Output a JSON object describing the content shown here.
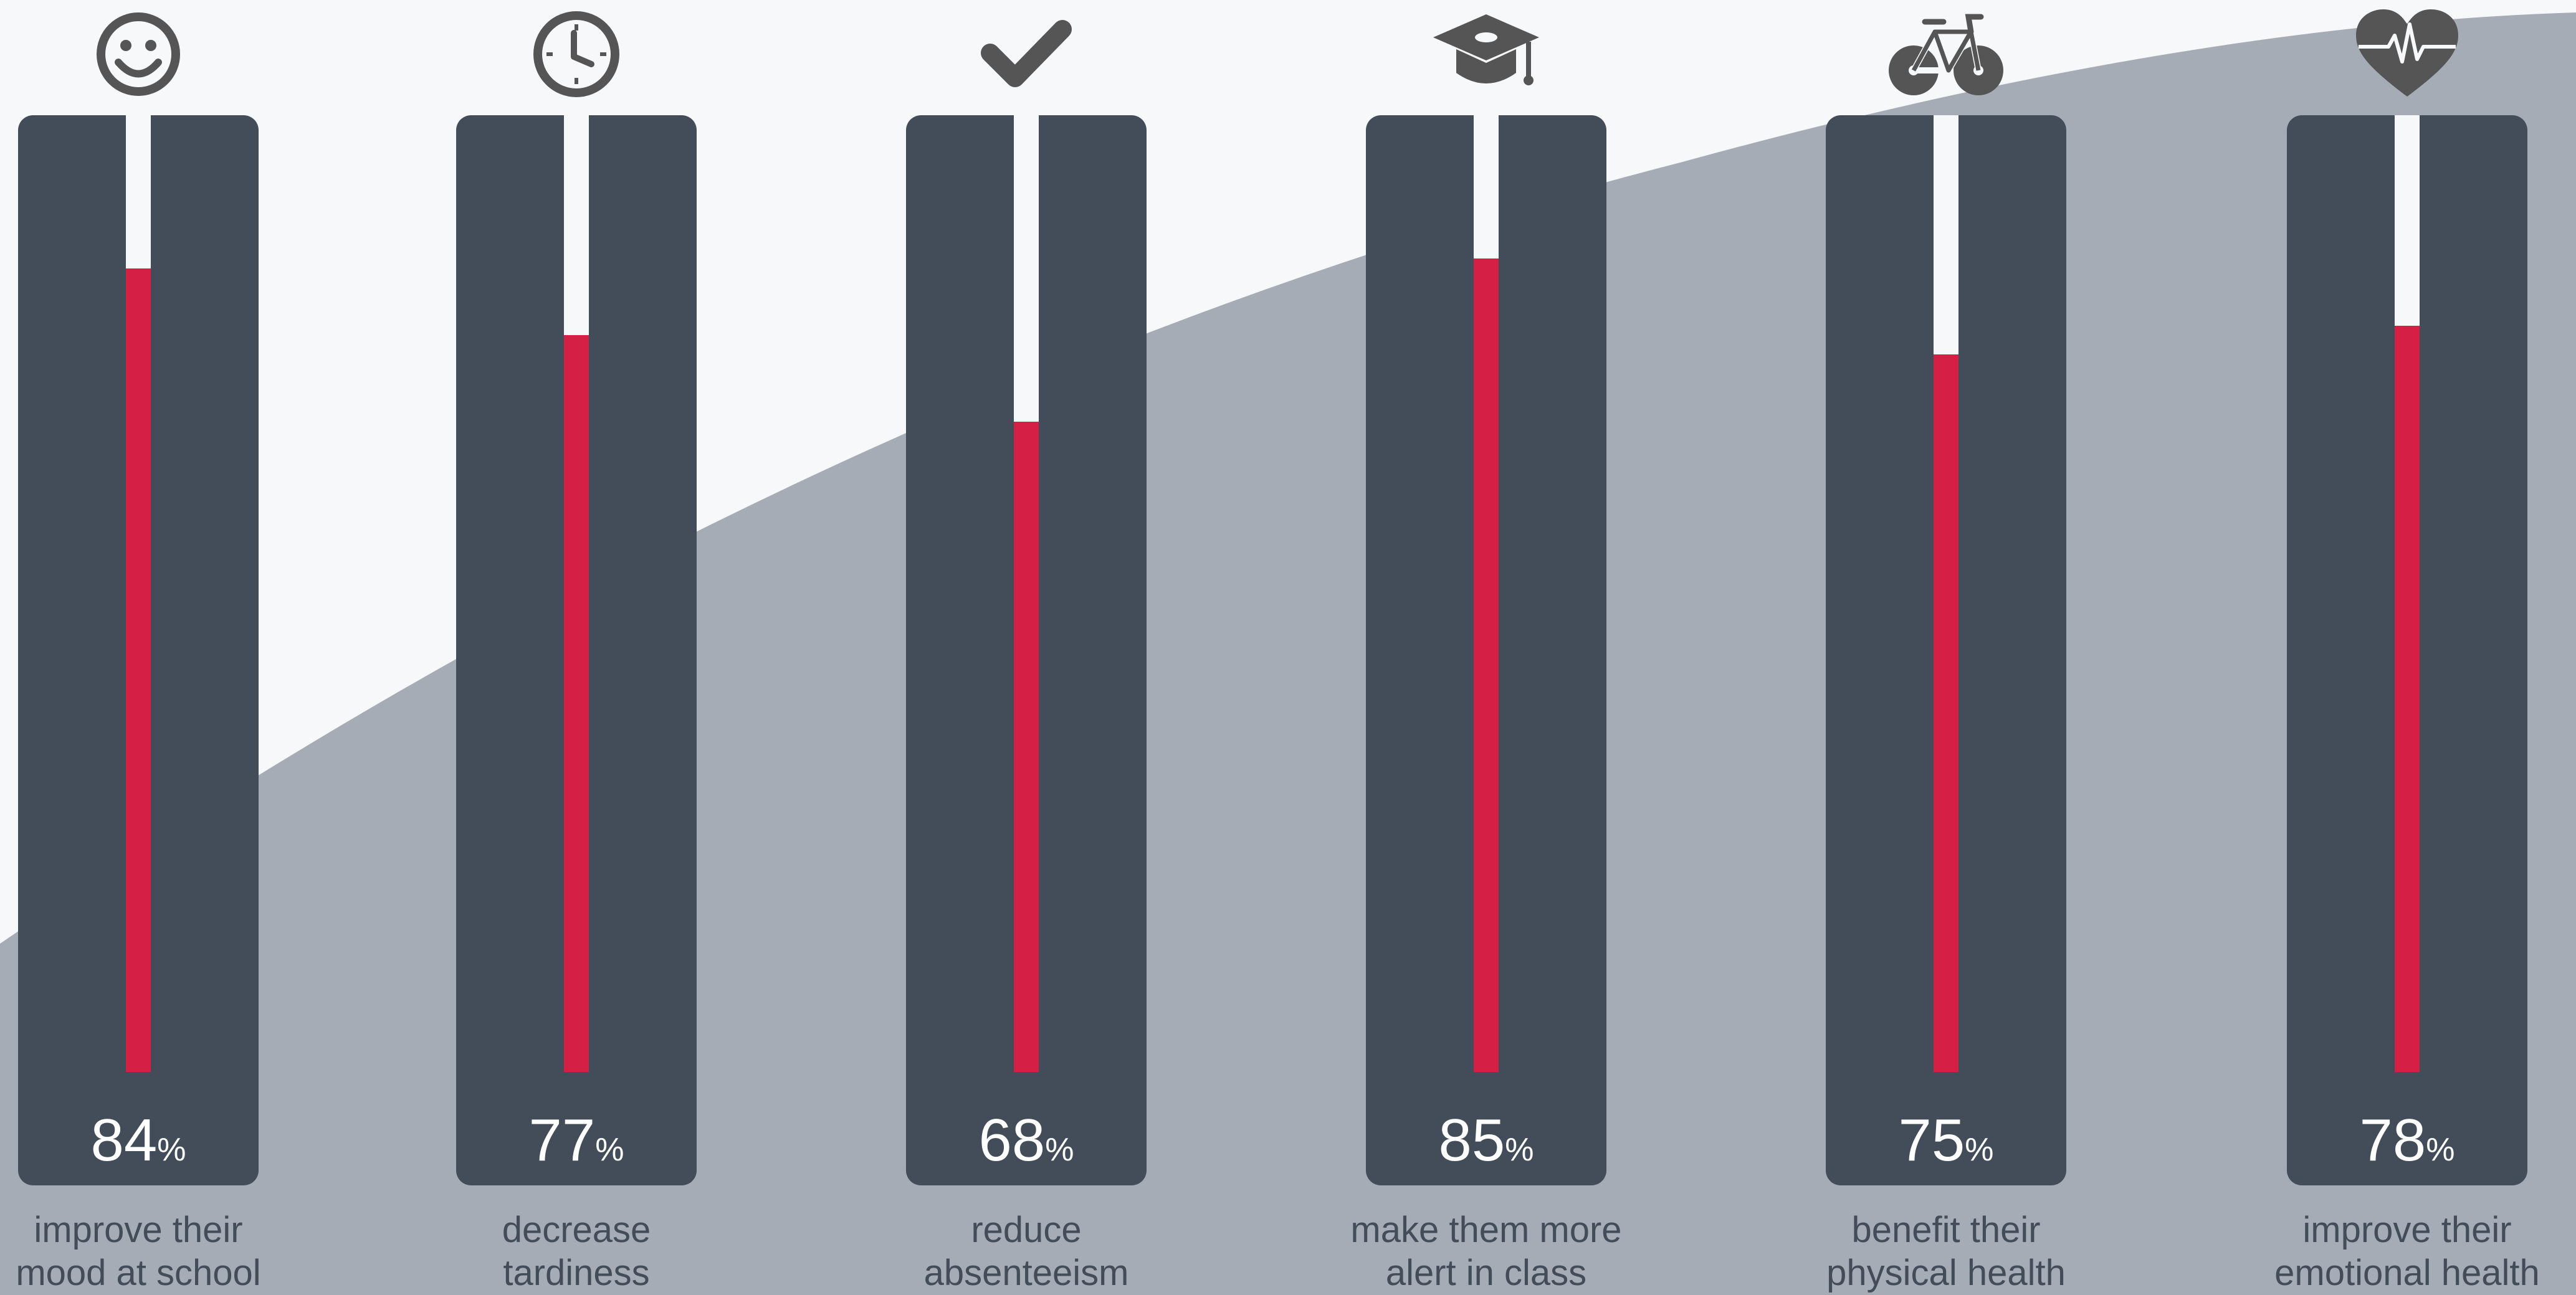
{
  "colors": {
    "background": "#f7f8fa",
    "curve": "#a5acb5",
    "panel": "#424d59",
    "fill": "#d51f44",
    "icon": "#555555",
    "value_text": "#ffffff",
    "label_text": "#424d59"
  },
  "chart_data": {
    "type": "bar",
    "title": "",
    "xlabel": "",
    "ylabel": "",
    "ylim": [
      0,
      100
    ],
    "unit": "%",
    "grid": false,
    "legend": "none",
    "categories": [
      "improve their mood at school",
      "decrease tardiness",
      "reduce absenteeism",
      "make them more alert in class",
      "benefit their physical health",
      "improve their emotional health"
    ],
    "values": [
      84,
      77,
      68,
      85,
      75,
      78
    ]
  },
  "items": [
    {
      "icon": "smiley-icon",
      "value": "84",
      "unit": "%",
      "label_lines": [
        "improve their",
        "mood at school"
      ]
    },
    {
      "icon": "clock-icon",
      "value": "77",
      "unit": "%",
      "label_lines": [
        "decrease",
        "tardiness"
      ]
    },
    {
      "icon": "checkmark-icon",
      "value": "68",
      "unit": "%",
      "label_lines": [
        "reduce",
        "absenteeism"
      ]
    },
    {
      "icon": "graduation-cap-icon",
      "value": "85",
      "unit": "%",
      "label_lines": [
        "make them more",
        "alert in class"
      ]
    },
    {
      "icon": "bicycle-icon",
      "value": "75",
      "unit": "%",
      "label_lines": [
        "benefit their",
        "physical health"
      ]
    },
    {
      "icon": "heartbeat-icon",
      "value": "78",
      "unit": "%",
      "label_lines": [
        "improve their",
        "emotional health"
      ]
    }
  ]
}
